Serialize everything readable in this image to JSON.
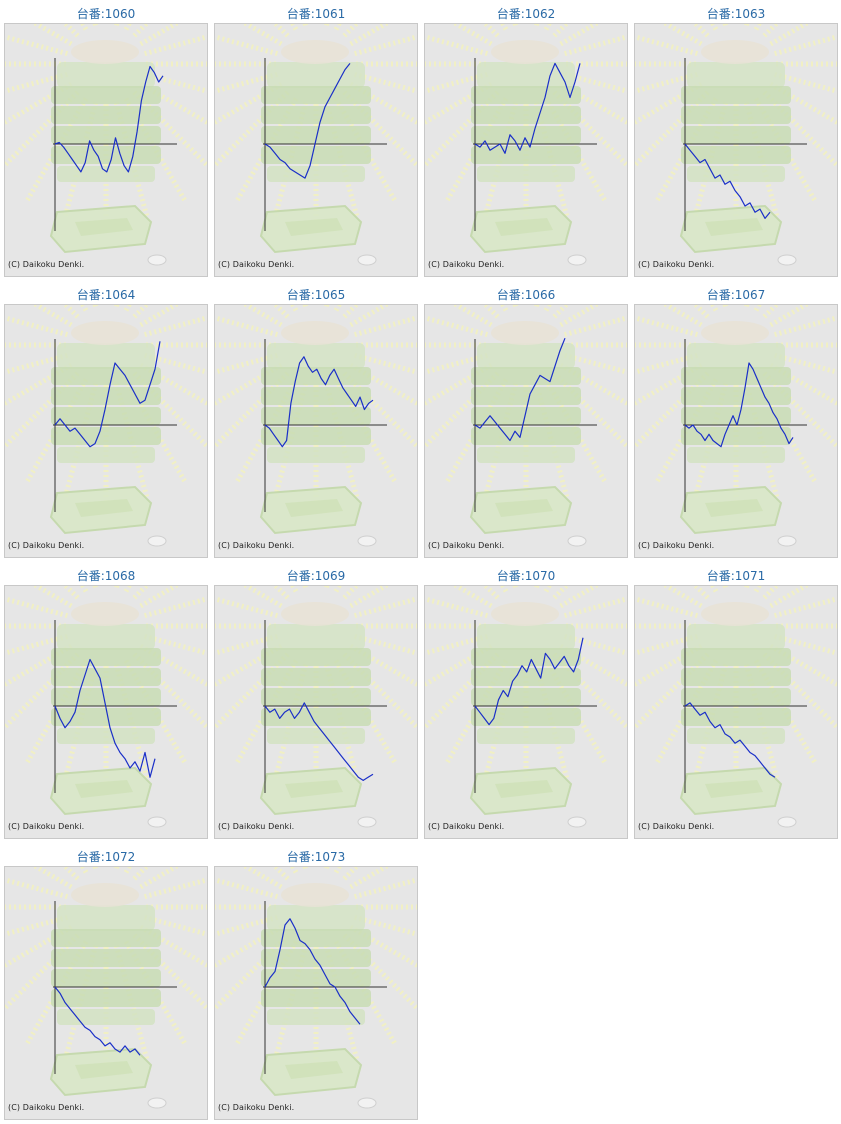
{
  "copyright": "(C) Daikoku Denki.",
  "colors": {
    "title": "#2a6aa6",
    "line": "#1a2fc8",
    "axis": "#333333",
    "panel": "#e6e6e6"
  },
  "machines": [
    {
      "label": "台番:1060",
      "trend": [
        0,
        1,
        -2,
        -6,
        -10,
        -14,
        -18,
        -12,
        2,
        -4,
        -8,
        -16,
        -18,
        -10,
        4,
        -6,
        -14,
        -18,
        -8,
        8,
        28,
        40,
        50,
        46,
        40,
        44
      ]
    },
    {
      "label": "台番:1061",
      "trend": [
        0,
        -2,
        -6,
        -10,
        -12,
        -16,
        -18,
        -20,
        -22,
        -14,
        0,
        14,
        24,
        30,
        36,
        42,
        48,
        52
      ]
    },
    {
      "label": "台番:1062",
      "trend": [
        0,
        -2,
        2,
        -4,
        -2,
        0,
        -6,
        6,
        2,
        -4,
        4,
        -2,
        10,
        20,
        30,
        44,
        52,
        46,
        40,
        30,
        40,
        52
      ]
    },
    {
      "label": "台番:1063",
      "trend": [
        0,
        -4,
        -8,
        -12,
        -10,
        -16,
        -22,
        -20,
        -26,
        -24,
        -30,
        -34,
        -40,
        -38,
        -44,
        -42,
        -48,
        -44
      ]
    },
    {
      "label": "台番:1064",
      "trend": [
        0,
        4,
        0,
        -4,
        -2,
        -6,
        -10,
        -14,
        -12,
        -4,
        10,
        26,
        40,
        36,
        32,
        26,
        20,
        14,
        16,
        26,
        36,
        54
      ]
    },
    {
      "label": "台番:1065",
      "trend": [
        0,
        -2,
        -6,
        -10,
        -14,
        -10,
        14,
        28,
        40,
        44,
        38,
        34,
        36,
        30,
        26,
        32,
        36,
        30,
        24,
        20,
        16,
        12,
        18,
        10,
        14,
        16
      ]
    },
    {
      "label": "台番:1066",
      "trend": [
        0,
        -2,
        2,
        6,
        2,
        -2,
        -6,
        -10,
        -4,
        -8,
        6,
        20,
        26,
        32,
        30,
        28,
        38,
        48,
        56
      ]
    },
    {
      "label": "台番:1067",
      "trend": [
        0,
        -2,
        0,
        -4,
        -6,
        -10,
        -6,
        -10,
        -12,
        -14,
        -6,
        0,
        6,
        0,
        10,
        24,
        40,
        36,
        30,
        24,
        18,
        14,
        8,
        4,
        -2,
        -6,
        -12,
        -8
      ]
    },
    {
      "label": "台番:1068",
      "trend": [
        0,
        -8,
        -14,
        -10,
        -4,
        10,
        20,
        30,
        24,
        18,
        2,
        -14,
        -24,
        -30,
        -34,
        -40,
        -36,
        -42,
        -30,
        -46,
        -34
      ]
    },
    {
      "label": "台番:1069",
      "trend": [
        0,
        -4,
        -2,
        -8,
        -4,
        -2,
        -8,
        -4,
        2,
        -4,
        -10,
        -14,
        -18,
        -22,
        -26,
        -30,
        -34,
        -38,
        -42,
        -46,
        -48,
        -46,
        -44
      ]
    },
    {
      "label": "台番:1070",
      "trend": [
        0,
        -4,
        -8,
        -12,
        -8,
        4,
        10,
        6,
        16,
        20,
        26,
        22,
        30,
        24,
        18,
        34,
        30,
        24,
        28,
        32,
        26,
        22,
        30,
        44
      ]
    },
    {
      "label": "台番:1071",
      "trend": [
        0,
        2,
        -2,
        -6,
        -4,
        -10,
        -14,
        -12,
        -18,
        -20,
        -24,
        -22,
        -26,
        -30,
        -32,
        -36,
        -40,
        -44,
        -46
      ]
    },
    {
      "label": "台番:1072",
      "trend": [
        0,
        -4,
        -10,
        -14,
        -18,
        -22,
        -26,
        -28,
        -32,
        -34,
        -38,
        -36,
        -40,
        -42,
        -38,
        -42,
        -40,
        -44
      ]
    },
    {
      "label": "台番:1073",
      "trend": [
        0,
        6,
        10,
        24,
        40,
        44,
        38,
        30,
        28,
        24,
        18,
        14,
        8,
        2,
        0,
        -6,
        -10,
        -16,
        -20,
        -24
      ]
    }
  ]
}
